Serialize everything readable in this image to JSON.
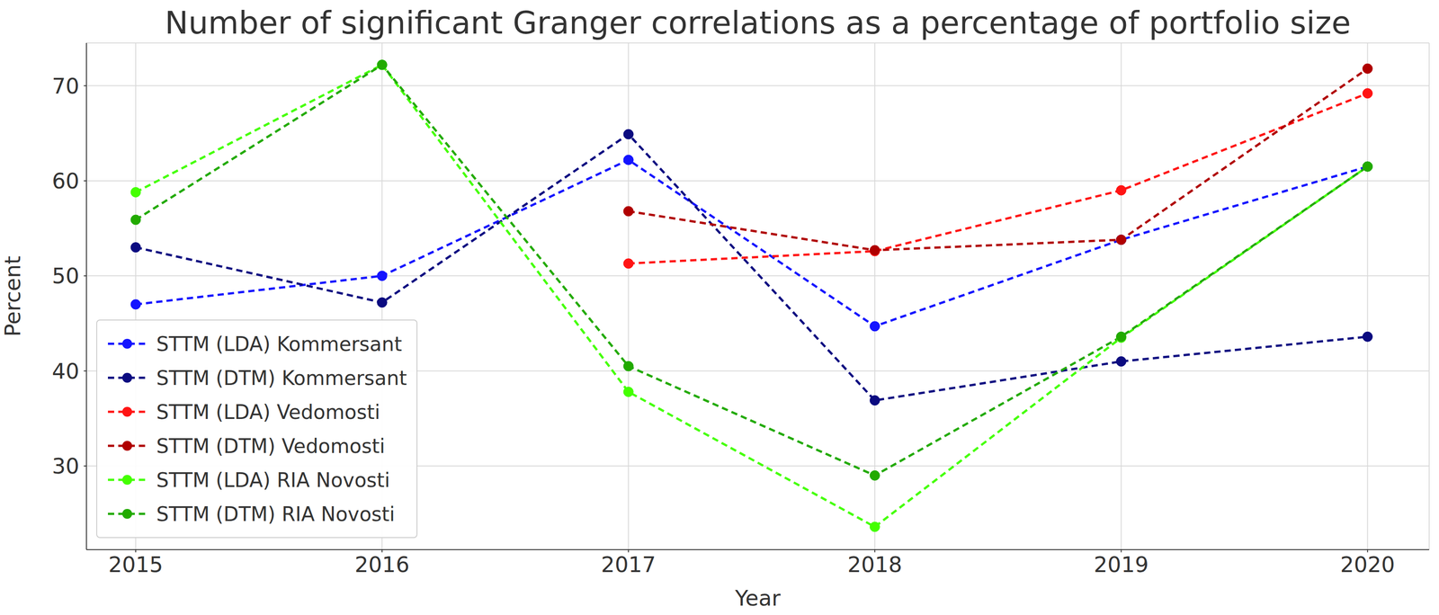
{
  "chart_data": {
    "type": "line",
    "title": "Number of significant Granger correlations as a percentage of portfolio size",
    "x_label": "Year",
    "y_label": "Percent",
    "x": [
      2015,
      2016,
      2017,
      2018,
      2019,
      2020
    ],
    "xlim": [
      2014.8,
      2020.25
    ],
    "xticks": [
      2015,
      2016,
      2017,
      2018,
      2019,
      2020
    ],
    "ylim": [
      21.2,
      74.5
    ],
    "yticks": [
      30,
      40,
      50,
      60,
      70
    ],
    "grid": true,
    "legend": "lower left",
    "line_style": "dashed",
    "marker": "circle",
    "series": [
      {
        "name": "STTM (LDA) Kommersant",
        "color": "#1414ff",
        "values": [
          47.0,
          50.0,
          62.2,
          44.7,
          53.8,
          61.5
        ]
      },
      {
        "name": "STTM (DTM) Kommersant",
        "color": "#0b0b80",
        "values": [
          53.0,
          47.2,
          64.9,
          36.9,
          41.0,
          43.6
        ]
      },
      {
        "name": "STTM (LDA) Vedomosti",
        "color": "#ff1414",
        "values": [
          null,
          null,
          51.3,
          52.6,
          59.0,
          69.2
        ]
      },
      {
        "name": "STTM (DTM) Vedomosti",
        "color": "#b00000",
        "values": [
          null,
          null,
          56.8,
          52.7,
          53.8,
          71.8
        ]
      },
      {
        "name": "STTM (LDA) RIA Novosti",
        "color": "#44ff00",
        "values": [
          58.8,
          72.2,
          37.8,
          23.6,
          43.5,
          61.5
        ]
      },
      {
        "name": "STTM (DTM) RIA Novosti",
        "color": "#22aa00",
        "values": [
          55.9,
          72.2,
          40.5,
          29.0,
          43.6,
          61.5
        ]
      }
    ]
  }
}
